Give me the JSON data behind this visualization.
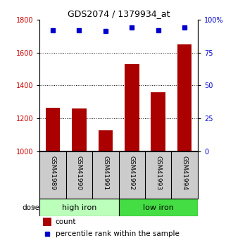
{
  "title": "GDS2074 / 1379934_at",
  "samples": [
    "GSM41989",
    "GSM41990",
    "GSM41991",
    "GSM41992",
    "GSM41993",
    "GSM41994"
  ],
  "bar_values": [
    1265,
    1260,
    1130,
    1530,
    1360,
    1650
  ],
  "percentile_values": [
    92,
    92,
    91,
    94,
    92,
    94
  ],
  "bar_color": "#aa0000",
  "dot_color": "#0000cc",
  "ylim_left": [
    1000,
    1800
  ],
  "ylim_right": [
    0,
    100
  ],
  "yticks_left": [
    1000,
    1200,
    1400,
    1600,
    1800
  ],
  "yticks_right": [
    0,
    25,
    50,
    75,
    100
  ],
  "yticklabels_right": [
    "0",
    "25",
    "50",
    "75",
    "100%"
  ],
  "groups": [
    {
      "label": "high iron",
      "color": "#bbffbb"
    },
    {
      "label": "low iron",
      "color": "#44dd44"
    }
  ],
  "dose_label": "dose",
  "legend_count_label": "count",
  "legend_percentile_label": "percentile rank within the sample",
  "background_color": "#ffffff",
  "tick_label_color_left": "#cc0000",
  "tick_label_color_right": "#0000cc",
  "bar_width": 0.55,
  "sample_box_color": "#cccccc",
  "grid_yticks": [
    1200,
    1400,
    1600
  ]
}
